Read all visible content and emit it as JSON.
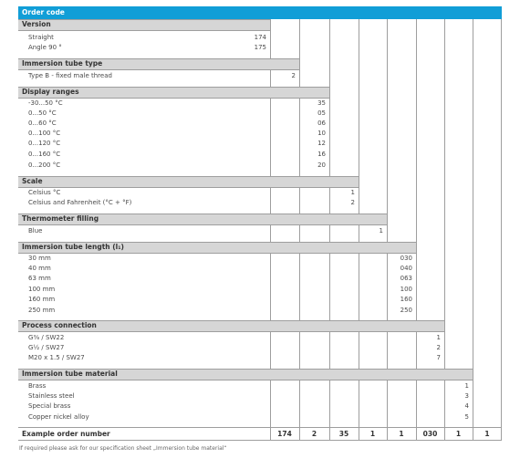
{
  "header": {
    "title": "Order code"
  },
  "sections": {
    "version": {
      "title": "Version",
      "rows": [
        {
          "label": "Straight",
          "code": "174"
        },
        {
          "label": "Angle 90 °",
          "code": "175"
        }
      ]
    },
    "immersion_tube_type": {
      "title": "Immersion tube type",
      "rows": [
        {
          "label": "Type B - fixed male thread",
          "code": "2"
        }
      ]
    },
    "display_ranges": {
      "title": "Display ranges",
      "rows": [
        {
          "label": "-30...50 °C",
          "code": "35"
        },
        {
          "label": "0...50 °C",
          "code": "05"
        },
        {
          "label": "0...60 °C",
          "code": "06"
        },
        {
          "label": "0...100 °C",
          "code": "10"
        },
        {
          "label": "0...120 °C",
          "code": "12"
        },
        {
          "label": "0...160 °C",
          "code": "16"
        },
        {
          "label": "0...200 °C",
          "code": "20"
        }
      ]
    },
    "scale": {
      "title": "Scale",
      "rows": [
        {
          "label": "Celsius °C",
          "code": "1"
        },
        {
          "label": "Celsius and Fahrenheit (°C + °F)",
          "code": "2"
        }
      ]
    },
    "thermometer_filling": {
      "title": "Thermometer filling",
      "rows": [
        {
          "label": "Blue",
          "code": "1"
        }
      ]
    },
    "immersion_tube_length": {
      "title": "Immersion tube length (l₁)",
      "rows": [
        {
          "label": "30 mm",
          "code": "030"
        },
        {
          "label": "40 mm",
          "code": "040"
        },
        {
          "label": "63 mm",
          "code": "063"
        },
        {
          "label": "100 mm",
          "code": "100"
        },
        {
          "label": "160 mm",
          "code": "160"
        },
        {
          "label": "250 mm",
          "code": "250"
        }
      ]
    },
    "process_connection": {
      "title": "Process connection",
      "rows": [
        {
          "label": "G⅜ / SW22",
          "code": "1"
        },
        {
          "label": "G½ / SW27",
          "code": "2"
        },
        {
          "label": "M20 x 1.5 / SW27",
          "code": "7"
        }
      ]
    },
    "immersion_tube_material": {
      "title": "Immersion tube material",
      "rows": [
        {
          "label": "Brass",
          "code": "1"
        },
        {
          "label": "Stainless steel",
          "code": "3"
        },
        {
          "label": "Special brass",
          "code": "4"
        },
        {
          "label": "Copper nickel alloy",
          "code": "5"
        }
      ]
    }
  },
  "example": {
    "label": "Example order number",
    "values": [
      "174",
      "2",
      "35",
      "1",
      "1",
      "030",
      "1",
      "1"
    ]
  },
  "footnote": "If required please ask for our specification sheet „Immersion tube material“",
  "colors": {
    "header": "#119ed7",
    "section": "#d6d6d6",
    "rule": "#9e9e9e"
  }
}
